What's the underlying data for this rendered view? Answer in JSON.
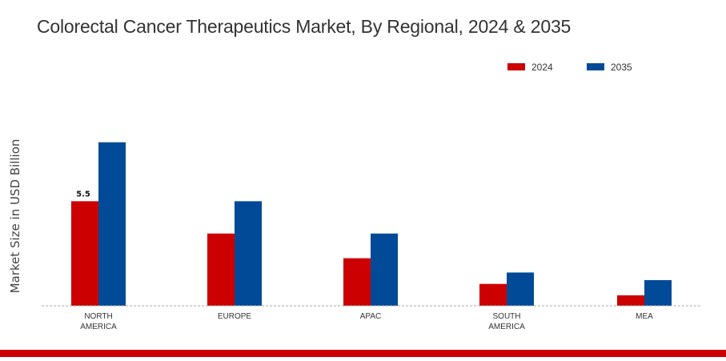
{
  "chart_data": {
    "type": "bar",
    "title": "Colorectal Cancer Therapeutics Market, By Regional, 2024 & 2035",
    "ylabel": "Market Size in USD Billion",
    "xlabel": "",
    "categories": [
      "NORTH\nAMERICA",
      "EUROPE",
      "APAC",
      "SOUTH\nAMERICA",
      "MEA"
    ],
    "series": [
      {
        "name": "2024",
        "color": "#cc0000",
        "values": [
          5.5,
          3.8,
          2.5,
          1.15,
          0.55
        ]
      },
      {
        "name": "2035",
        "color": "#004a98",
        "values": [
          8.6,
          5.5,
          3.8,
          1.75,
          1.35
        ]
      }
    ],
    "data_labels": [
      {
        "series": 0,
        "index": 0,
        "text": "5.5"
      }
    ],
    "ylim": [
      0,
      12
    ],
    "grid": false,
    "legend_position": "top-right"
  },
  "theme": {
    "footer_color": "#cc0000",
    "baseline_color": "#aaaaaa"
  }
}
